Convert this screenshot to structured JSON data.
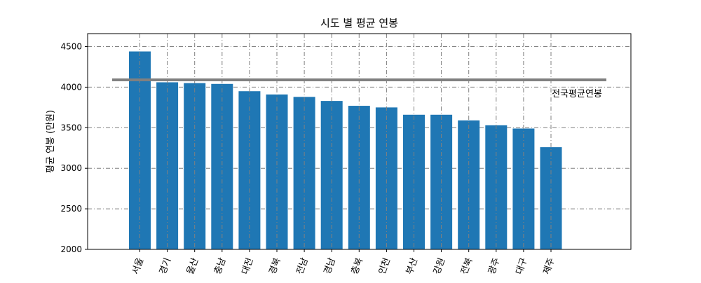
{
  "chart_data": {
    "type": "bar",
    "title": "시도 별 평균 연봉",
    "xlabel": "",
    "ylabel": "평균 연봉 (만원)",
    "categories": [
      "서울",
      "경기",
      "울산",
      "충남",
      "대전",
      "경북",
      "전남",
      "경남",
      "충북",
      "인천",
      "부산",
      "강원",
      "전북",
      "광주",
      "대구",
      "제주"
    ],
    "values": [
      4440,
      4060,
      4050,
      4040,
      3950,
      3910,
      3880,
      3830,
      3770,
      3750,
      3660,
      3660,
      3590,
      3530,
      3490,
      3260
    ],
    "ylim": [
      2000,
      4660
    ],
    "yticks": [
      "2000",
      "2500",
      "3000",
      "3500",
      "4000",
      "4500"
    ],
    "grid": true,
    "reference_line": {
      "label": "전국평균연봉",
      "value": 4090,
      "color": "#808080"
    },
    "bar_color": "#1f77b4"
  }
}
